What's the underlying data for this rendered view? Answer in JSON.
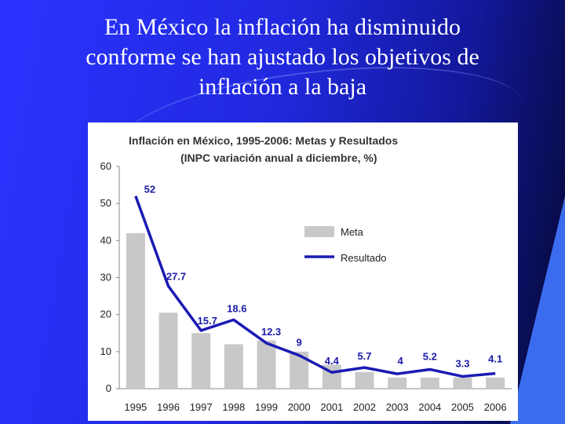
{
  "slide": {
    "title_lines": [
      "En México la inflación ha disminuido",
      "conforme se han ajustado los objetivos de",
      "inflación a la baja"
    ]
  },
  "chart_data": {
    "type": "bar",
    "title": "Inflación en México, 1995-2006: Metas y Resultados",
    "subtitle": "(INPC variación anual a diciembre, %)",
    "categories": [
      "1995",
      "1996",
      "1997",
      "1998",
      "1999",
      "2000",
      "2001",
      "2002",
      "2003",
      "2004",
      "2005",
      "2006"
    ],
    "ylim": [
      0,
      60
    ],
    "yticks": [
      0,
      10,
      20,
      30,
      40,
      50,
      60
    ],
    "grid": false,
    "legend_position": "right",
    "series": [
      {
        "name": "Meta",
        "type": "bar",
        "color": "#c8c8c8",
        "values": [
          42,
          20.5,
          15,
          12,
          13,
          10,
          6.5,
          4.5,
          3,
          3,
          3,
          3
        ]
      },
      {
        "name": "Resultado",
        "type": "line",
        "color": "#1a1ab4",
        "values": [
          52,
          27.7,
          15.7,
          18.6,
          12.3,
          9,
          4.4,
          5.7,
          4,
          5.2,
          3.3,
          4.1
        ],
        "labels": [
          "52",
          "27.7",
          "15.7",
          "18.6",
          "12.3",
          "9",
          "4.4",
          "5.7",
          "4",
          "5.2",
          "3.3",
          "4.1"
        ]
      }
    ]
  }
}
